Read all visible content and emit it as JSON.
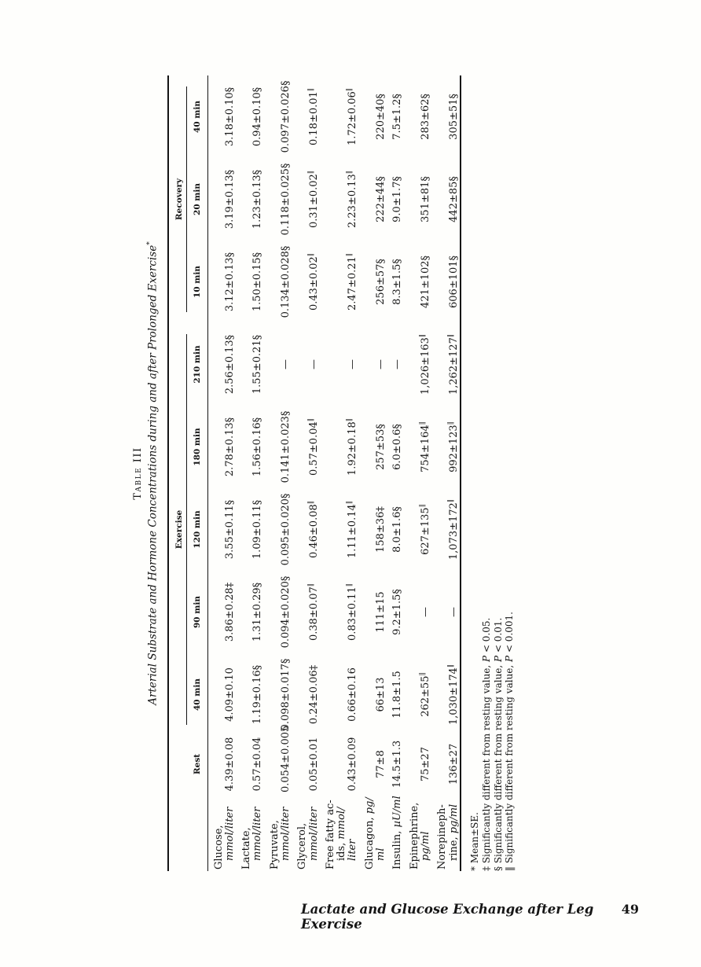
{
  "table": {
    "label": "Table III",
    "title": "Arterial Substrate and Hormone Concentrations during and after Prolonged Exercise",
    "title_note": "*",
    "groups": [
      {
        "label": "Exercise",
        "span": 5
      },
      {
        "label": "Recovery",
        "span": 3
      }
    ],
    "columns": [
      "Rest",
      "40 min",
      "90 min",
      "120 min",
      "180 min",
      "210 min",
      "10 min",
      "20 min",
      "40 min"
    ],
    "rows": [
      {
        "label_lines": [
          "Glucose,",
          "<i>mmol/liter</i>"
        ],
        "values": [
          "4.39±0.08",
          "4.09±0.10",
          "3.86±0.28‡",
          "3.55±0.11§",
          "2.78±0.13§",
          "2.56±0.13§",
          "3.12±0.13§",
          "3.19±0.13§",
          "3.18±0.10§"
        ]
      },
      {
        "label_lines": [
          "Lactate,",
          "<i>mmol/liter</i>"
        ],
        "values": [
          "0.57±0.04",
          "1.19±0.16§",
          "1.31±0.29§",
          "1.09±0.11§",
          "1.56±0.16§",
          "1.55±0.21§",
          "1.50±0.15§",
          "1.23±0.13§",
          "0.94±0.10§"
        ]
      },
      {
        "label_lines": [
          "Pyruvate,",
          "<i>mmol/liter</i>"
        ],
        "values": [
          "0.054±0.005",
          "0.098±0.017§",
          "0.094±0.020§",
          "0.095±0.020§",
          "0.141±0.023§",
          "—",
          "0.134±0.028§",
          "0.118±0.025§",
          "0.097±0.026§"
        ]
      },
      {
        "label_lines": [
          "Glycerol,",
          "<i>mmol/liter</i>"
        ],
        "values": [
          "0.05±0.01",
          "0.24±0.06‡",
          "0.38±0.07‖",
          "0.46±0.08‖",
          "0.57±0.04‖",
          "—",
          "0.43±0.02‖",
          "0.31±0.02‖",
          "0.18±0.01‖"
        ]
      },
      {
        "label_lines": [
          "Free fatty ac-",
          "ids, <i>mmol/</i>",
          "<i>liter</i>"
        ],
        "values": [
          "0.43±0.09",
          "0.66±0.16",
          "0.83±0.11‖",
          "1.11±0.14‖",
          "1.92±0.18‖",
          "—",
          "2.47±0.21‖",
          "2.23±0.13‖",
          "1.72±0.06‖"
        ]
      },
      {
        "label_lines": [
          "Glucagon, <i>pg/</i>",
          "<i>ml</i>"
        ],
        "values": [
          "77±8",
          "66±13",
          "111±15",
          "158±36‡",
          "257±53§",
          "—",
          "256±57§",
          "222±44§",
          "220±40§"
        ]
      },
      {
        "label_lines": [
          "Insulin, <i>µU/ml</i>"
        ],
        "values": [
          "14.5±1.3",
          "11.8±1.5",
          "9.2±1.5§",
          "8.0±1.6§",
          "6.0±0.6§",
          "—",
          "8.3±1.5§",
          "9.0±1.7§",
          "7.5±1.2§"
        ]
      },
      {
        "label_lines": [
          "Epinephrine,",
          "<i>pg/ml</i>"
        ],
        "values": [
          "75±27",
          "262±55‖",
          "—",
          "627±135‖",
          "754±164‖",
          "1,026±163‖",
          "421±102§",
          "351±81§",
          "283±62§"
        ]
      },
      {
        "label_lines": [
          "Norepineph-",
          "rine, <i>pg/ml</i>"
        ],
        "values": [
          "136±27",
          "1,030±174‖",
          "—",
          "1,073±172‖",
          "992±123‖",
          "1,262±127‖",
          "606±101§",
          "442±85§",
          "305±51§"
        ]
      }
    ],
    "footnotes": [
      "* Mean±SE.",
      "‡ Significantly different from resting value, P < 0.05.",
      "§ Significantly different from resting value, P < 0.01.",
      "‖ Significantly different from resting value, P < 0.001."
    ]
  },
  "footer": {
    "running_title": "Lactate and Glucose Exchange after Leg Exercise",
    "page_number": "49"
  }
}
